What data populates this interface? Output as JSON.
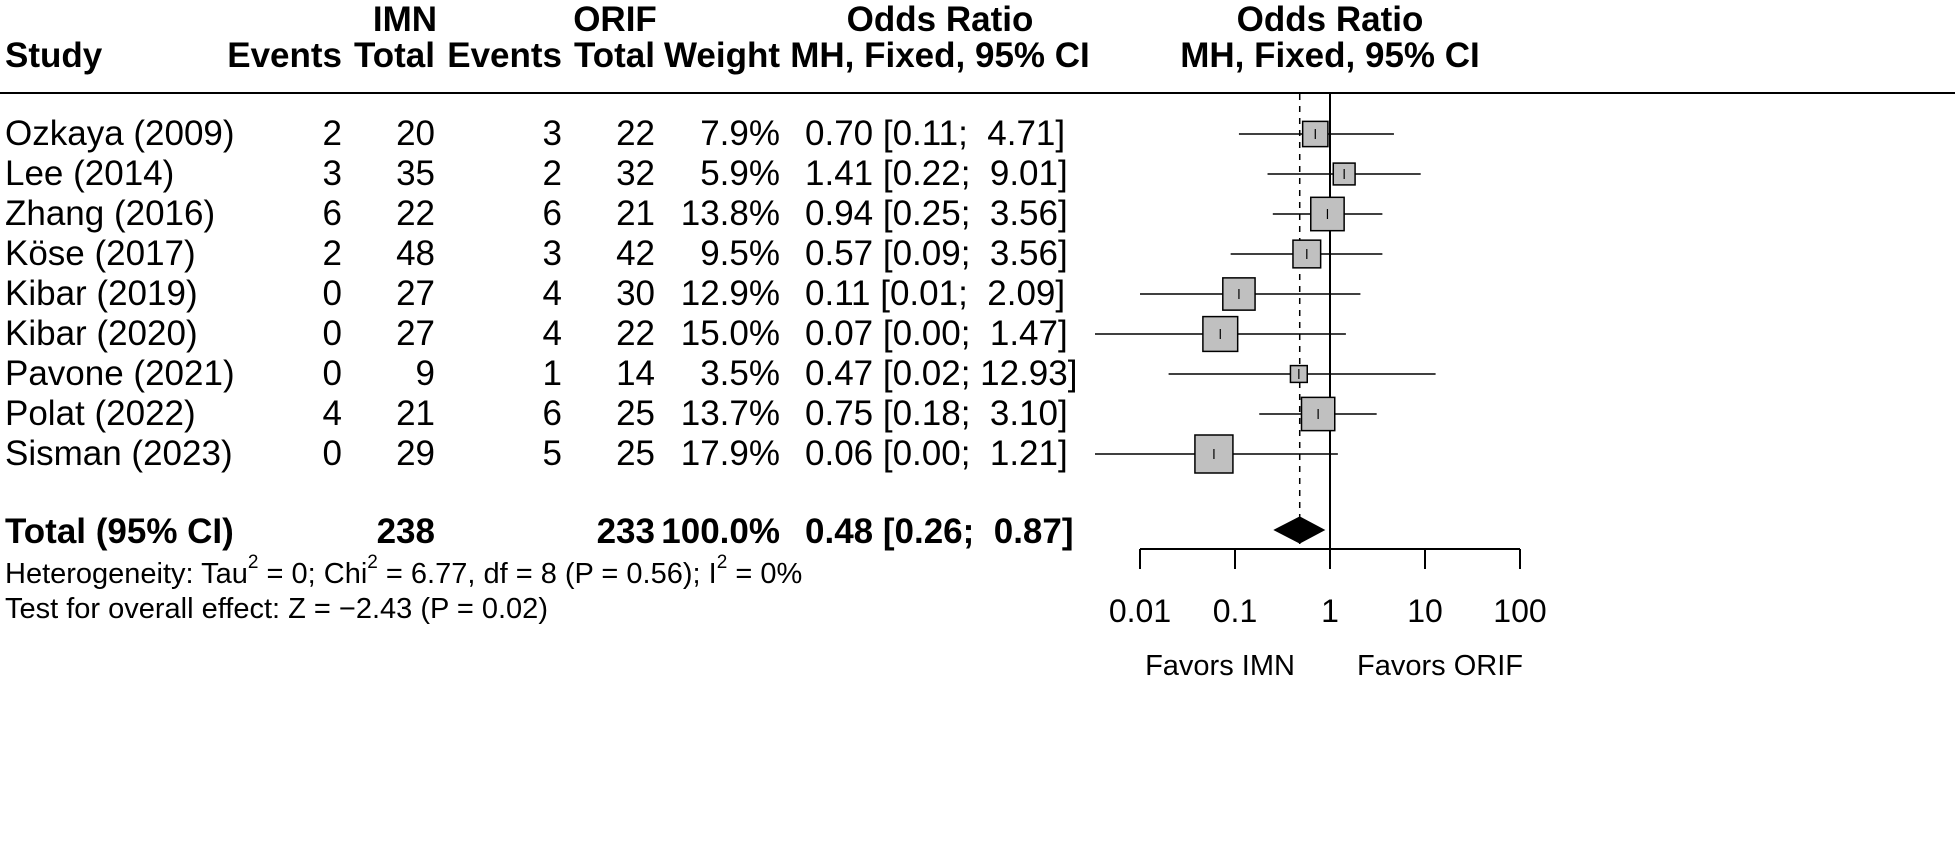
{
  "headers": {
    "study": "Study",
    "group1": "IMN",
    "group2": "ORIF",
    "events": "Events",
    "total": "Total",
    "weight": "Weight",
    "or_title": "Odds Ratio",
    "or_method": "MH, Fixed, 95% CI",
    "plot_title": "Odds Ratio",
    "plot_method": "MH, Fixed, 95% CI"
  },
  "studies": [
    {
      "study": "Ozkaya (2009)",
      "e1": "2",
      "n1": "20",
      "e2": "3",
      "n2": "22",
      "weight": "7.9%",
      "ci_text": "0.70 [0.11;  4.71]"
    },
    {
      "study": "Lee (2014)",
      "e1": "3",
      "n1": "35",
      "e2": "2",
      "n2": "32",
      "weight": "5.9%",
      "ci_text": "1.41 [0.22;  9.01]"
    },
    {
      "study": "Zhang (2016)",
      "e1": "6",
      "n1": "22",
      "e2": "6",
      "n2": "21",
      "weight": "13.8%",
      "ci_text": "0.94 [0.25;  3.56]"
    },
    {
      "study": "Köse (2017)",
      "e1": "2",
      "n1": "48",
      "e2": "3",
      "n2": "42",
      "weight": "9.5%",
      "ci_text": "0.57 [0.09;  3.56]"
    },
    {
      "study": "Kibar (2019)",
      "e1": "0",
      "n1": "27",
      "e2": "4",
      "n2": "30",
      "weight": "12.9%",
      "ci_text": "0.11 [0.01;  2.09]"
    },
    {
      "study": "Kibar (2020)",
      "e1": "0",
      "n1": "27",
      "e2": "4",
      "n2": "22",
      "weight": "15.0%",
      "ci_text": "0.07 [0.00;  1.47]"
    },
    {
      "study": "Pavone (2021)",
      "e1": "0",
      "n1": "9",
      "e2": "1",
      "n2": "14",
      "weight": "3.5%",
      "ci_text": "0.47 [0.02; 12.93]"
    },
    {
      "study": "Polat (2022)",
      "e1": "4",
      "n1": "21",
      "e2": "6",
      "n2": "25",
      "weight": "13.7%",
      "ci_text": "0.75 [0.18;  3.10]"
    },
    {
      "study": "Sisman (2023)",
      "e1": "0",
      "n1": "29",
      "e2": "5",
      "n2": "25",
      "weight": "17.9%",
      "ci_text": "0.06 [0.00;  1.21]"
    }
  ],
  "total": {
    "label": "Total (95% CI)",
    "n1": "238",
    "n2": "233",
    "weight": "100.0%",
    "ci_text": "0.48 [0.26;  0.87]"
  },
  "footer": {
    "heterogeneity_prefix": "Heterogeneity: Tau",
    "heterogeneity_sup1": "2",
    "heterogeneity_mid": " = 0; Chi",
    "heterogeneity_sup2": "2",
    "heterogeneity_mid2": " = 6.77, df = 8 (P = 0.56); I",
    "heterogeneity_sup3": "2",
    "heterogeneity_end": " = 0%",
    "overall_effect": "Test for overall effect: Z = −2.43 (P = 0.02)"
  },
  "chart_data": {
    "type": "forest",
    "x_scale": "log",
    "xlim": [
      0.01,
      100
    ],
    "ticks": [
      0.01,
      0.1,
      1,
      10,
      100
    ],
    "tick_labels": [
      "0.01",
      "0.1",
      "1",
      "10",
      "100"
    ],
    "reference_line": 1,
    "pooled_line": 0.48,
    "favors_left": "Favors IMN",
    "favors_right": "Favors ORIF",
    "points": [
      {
        "study": "Ozkaya (2009)",
        "or": 0.7,
        "lower": 0.11,
        "upper": 4.71,
        "weight": 7.9
      },
      {
        "study": "Lee (2014)",
        "or": 1.41,
        "lower": 0.22,
        "upper": 9.01,
        "weight": 5.9
      },
      {
        "study": "Zhang (2016)",
        "or": 0.94,
        "lower": 0.25,
        "upper": 3.56,
        "weight": 13.8
      },
      {
        "study": "Köse (2017)",
        "or": 0.57,
        "lower": 0.09,
        "upper": 3.56,
        "weight": 9.5
      },
      {
        "study": "Kibar (2019)",
        "or": 0.11,
        "lower": 0.01,
        "upper": 2.09,
        "weight": 12.9
      },
      {
        "study": "Kibar (2020)",
        "or": 0.07,
        "lower": 0.0,
        "upper": 1.47,
        "weight": 15.0
      },
      {
        "study": "Pavone (2021)",
        "or": 0.47,
        "lower": 0.02,
        "upper": 12.93,
        "weight": 3.5
      },
      {
        "study": "Polat (2022)",
        "or": 0.75,
        "lower": 0.18,
        "upper": 3.1,
        "weight": 13.7
      },
      {
        "study": "Sisman (2023)",
        "or": 0.06,
        "lower": 0.0,
        "upper": 1.21,
        "weight": 17.9
      }
    ],
    "pooled": {
      "or": 0.48,
      "lower": 0.26,
      "upper": 0.87
    },
    "colors": {
      "box_fill": "#c0c0c0",
      "box_stroke": "#000000",
      "diamond": "#000000"
    }
  }
}
